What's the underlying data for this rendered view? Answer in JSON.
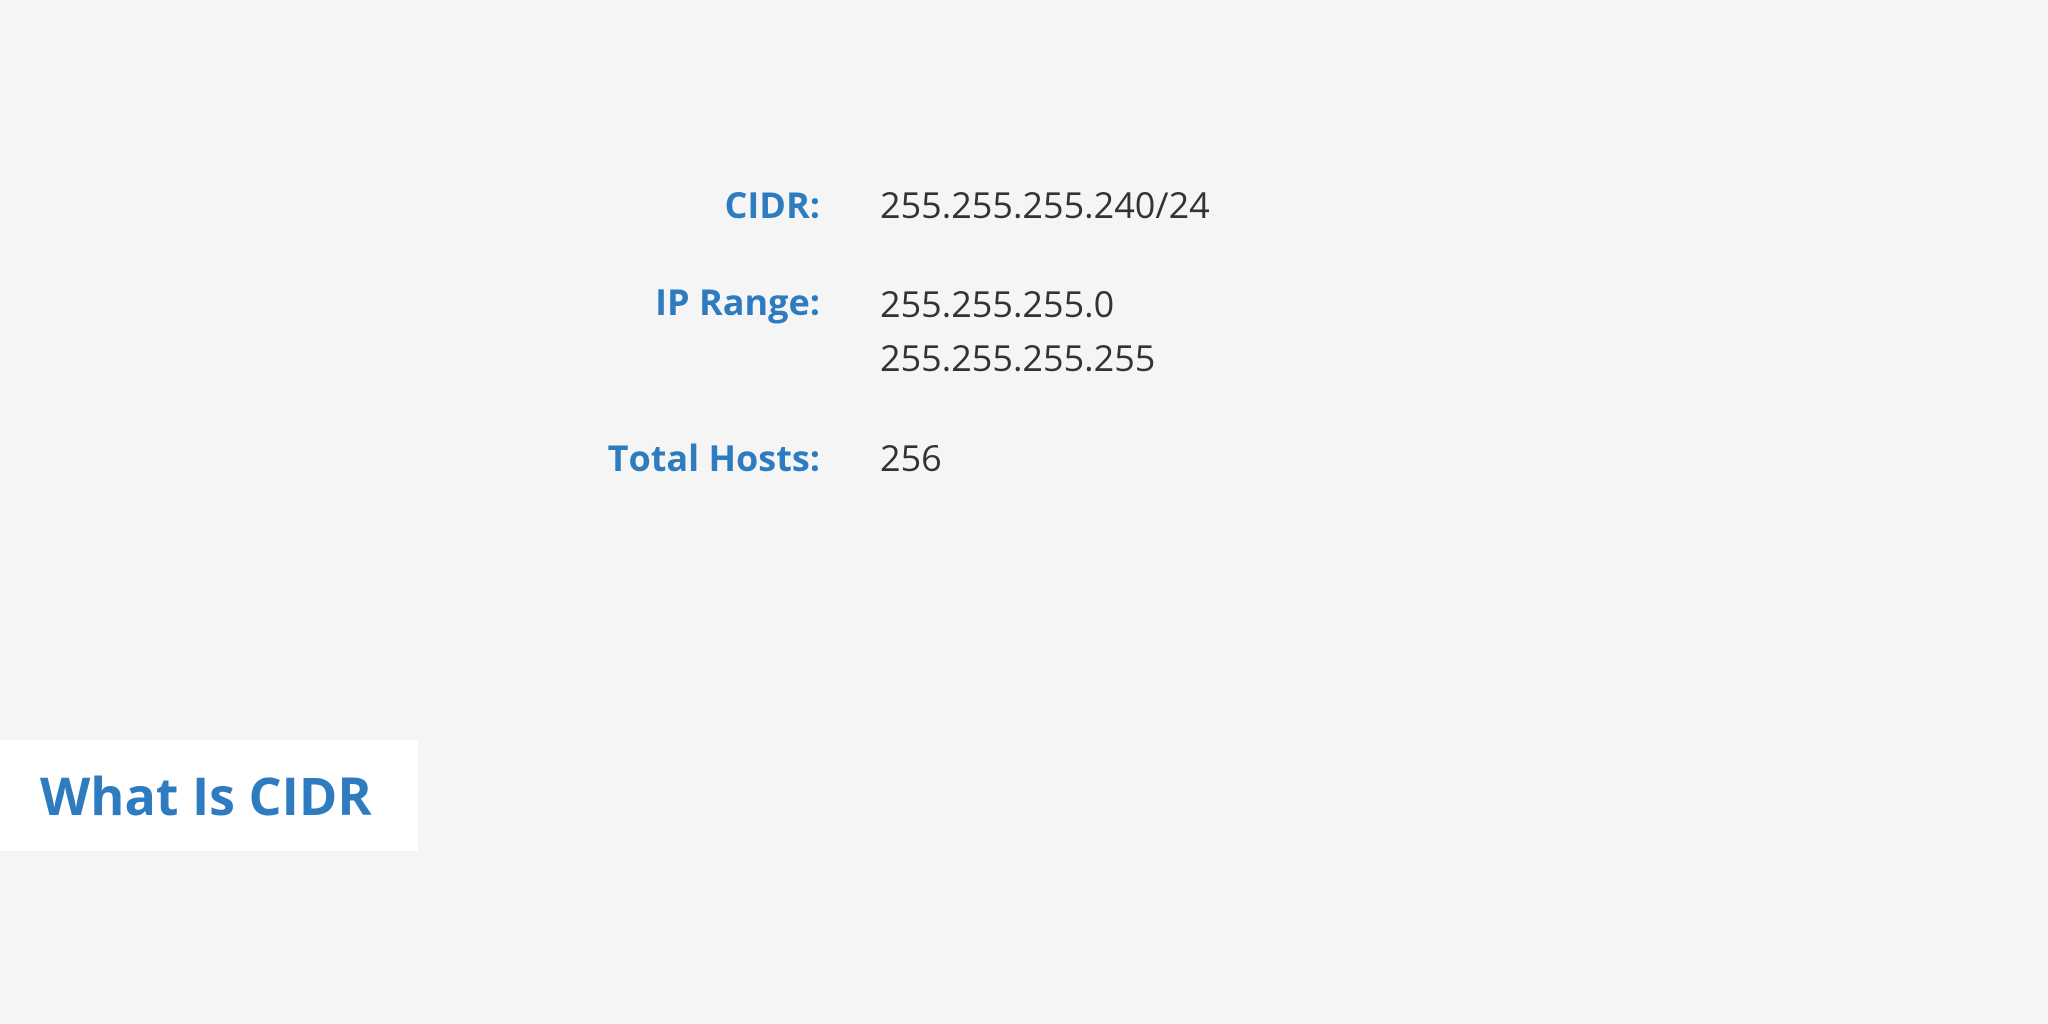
{
  "colors": {
    "background": "#f5f5f5",
    "label": "#2e7cbf",
    "value": "#333333",
    "heading": "#2e7cbf",
    "heading_box_bg": "#ffffff"
  },
  "typography": {
    "label_fontsize": 36,
    "label_weight": 700,
    "value_fontsize": 36,
    "value_weight": 400,
    "heading_fontsize": 52,
    "heading_weight": 700
  },
  "rows": {
    "cidr": {
      "label": "CIDR:",
      "value": "255.255.255.240/24"
    },
    "ip_range": {
      "label": "IP Range:",
      "value_start": "255.255.255.0",
      "value_end": "255.255.255.255"
    },
    "total_hosts": {
      "label": "Total Hosts:",
      "value": "256"
    }
  },
  "heading": "What Is CIDR"
}
